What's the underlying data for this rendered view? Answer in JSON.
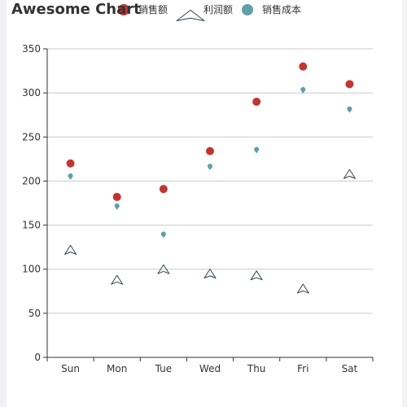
{
  "chart_data": {
    "type": "scatter",
    "title": "Awesome Chart",
    "categories": [
      "Sun",
      "Mon",
      "Tue",
      "Wed",
      "Thu",
      "Fri",
      "Sat"
    ],
    "ylim": [
      0,
      350
    ],
    "yticks": [
      0,
      50,
      100,
      150,
      200,
      250,
      300,
      350
    ],
    "grid": true,
    "legend_position": "top",
    "series": [
      {
        "name": "销售额",
        "values": [
          220,
          182,
          191,
          234,
          290,
          330,
          310
        ],
        "symbol": "circle",
        "color": "#c23531"
      },
      {
        "name": "利润额",
        "values": [
          122,
          88,
          100,
          95,
          93,
          78,
          208
        ],
        "symbol": "arrow",
        "color": "#2f4554"
      },
      {
        "name": "销售成本",
        "values": [
          205,
          171,
          139,
          216,
          235,
          303,
          281
        ],
        "symbol": "pin",
        "color": "#61a0a8"
      }
    ]
  }
}
